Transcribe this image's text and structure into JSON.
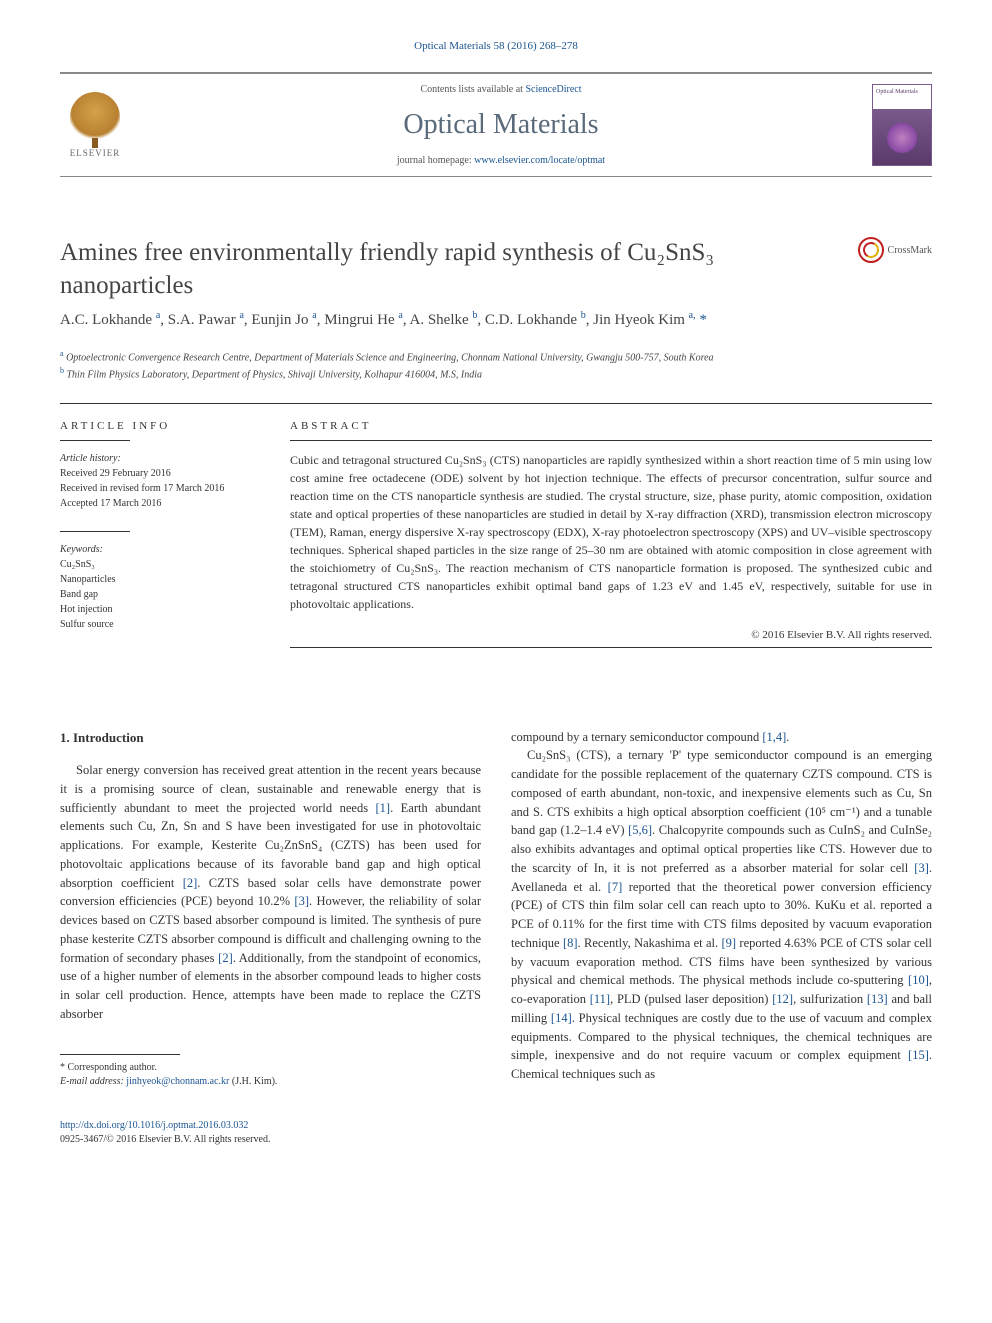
{
  "citation": "Optical Materials 58 (2016) 268–278",
  "header": {
    "contents_text": "Contents lists available at ",
    "sciencedirect": "ScienceDirect",
    "journal_name": "Optical Materials",
    "homepage_label": "journal homepage: ",
    "homepage_url": "www.elsevier.com/locate/optmat",
    "publisher_logo_text": "ELSEVIER"
  },
  "article": {
    "title": "Amines free environmentally friendly rapid synthesis of Cu₂SnS₃ nanoparticles",
    "crossmark_label": "CrossMark",
    "authors_html": "A.C. Lokhande <sup>a</sup>, S.A. Pawar <sup>a</sup>, Eunjin Jo <sup>a</sup>, Mingrui He <sup>a</sup>, A. Shelke <sup>b</sup>, C.D. Lokhande <sup>b</sup>, Jin Hyeok Kim <sup>a,</sup> <span class=\"star\">*</span>",
    "affiliations": [
      {
        "sup": "a",
        "text": "Optoelectronic Convergence Research Centre, Department of Materials Science and Engineering, Chonnam National University, Gwangju 500-757, South Korea"
      },
      {
        "sup": "b",
        "text": "Thin Film Physics Laboratory, Department of Physics, Shivaji University, Kolhapur 416004, M.S, India"
      }
    ]
  },
  "info": {
    "heading": "ARTICLE INFO",
    "history_label": "Article history:",
    "history": [
      "Received 29 February 2016",
      "Received in revised form 17 March 2016",
      "Accepted 17 March 2016"
    ],
    "keywords_label": "Keywords:",
    "keywords": [
      "Cu₂SnS₃",
      "Nanoparticles",
      "Band gap",
      "Hot injection",
      "Sulfur source"
    ]
  },
  "abstract": {
    "heading": "ABSTRACT",
    "text": "Cubic and tetragonal structured Cu₂SnS₃ (CTS) nanoparticles are rapidly synthesized within a short reaction time of 5 min using low cost amine free octadecene (ODE) solvent by hot injection technique. The effects of precursor concentration, sulfur source and reaction time on the CTS nanoparticle synthesis are studied. The crystal structure, size, phase purity, atomic composition, oxidation state and optical properties of these nanoparticles are studied in detail by X-ray diffraction (XRD), transmission electron microscopy (TEM), Raman, energy dispersive X-ray spectroscopy (EDX), X-ray photoelectron spectroscopy (XPS) and UV–visible spectroscopy techniques. Spherical shaped particles in the size range of 25–30 nm are obtained with atomic composition in close agreement with the stoichiometry of Cu₂SnS₃. The reaction mechanism of CTS nanoparticle formation is proposed. The synthesized cubic and tetragonal structured CTS nanoparticles exhibit optimal band gaps of 1.23 eV and 1.45 eV, respectively, suitable for use in photovoltaic applications.",
    "copyright": "© 2016 Elsevier B.V. All rights reserved."
  },
  "body": {
    "section_heading": "1. Introduction",
    "col1_p1": "Solar energy conversion has received great attention in the recent years because it is a promising source of clean, sustainable and renewable energy that is sufficiently abundant to meet the projected world needs [1]. Earth abundant elements such Cu, Zn, Sn and S have been investigated for use in photovoltaic applications. For example, Kesterite Cu₂ZnSnS₄ (CZTS) has been used for photovoltaic applications because of its favorable band gap and high optical absorption coefficient [2]. CZTS based solar cells have demonstrate power conversion efficiencies (PCE) beyond 10.2% [3]. However, the reliability of solar devices based on CZTS based absorber compound is limited. The synthesis of pure phase kesterite CZTS absorber compound is difficult and challenging owning to the formation of secondary phases [2]. Additionally, from the standpoint of economics, use of a higher number of elements in the absorber compound leads to higher costs in solar cell production. Hence, attempts have been made to replace the CZTS absorber",
    "col2_p1": "compound by a ternary semiconductor compound [1,4].",
    "col2_p2": "Cu₂SnS₃ (CTS), a ternary 'P' type semiconductor compound is an emerging candidate for the possible replacement of the quaternary CZTS compound. CTS is composed of earth abundant, non-toxic, and inexpensive elements such as Cu, Sn and S. CTS exhibits a high optical absorption coefficient (10⁵ cm⁻¹) and a tunable band gap (1.2–1.4 eV) [5,6]. Chalcopyrite compounds such as CuInS₂ and CuInSe₂ also exhibits advantages and optimal optical properties like CTS. However due to the scarcity of In, it is not preferred as a absorber material for solar cell [3]. Avellaneda et al. [7] reported that the theoretical power conversion efficiency (PCE) of CTS thin film solar cell can reach upto to 30%. KuKu et al. reported a PCE of 0.11% for the first time with CTS films deposited by vacuum evaporation technique [8]. Recently, Nakashima et al. [9] reported 4.63% PCE of CTS solar cell by vacuum evaporation method. CTS films have been synthesized by various physical and chemical methods. The physical methods include co-sputtering [10], co-evaporation [11], PLD (pulsed laser deposition) [12], sulfurization [13] and ball milling [14]. Physical techniques are costly due to the use of vacuum and complex equipments. Compared to the physical techniques, the chemical techniques are simple, inexpensive and do not require vacuum or complex equipment [15]. Chemical techniques such as"
  },
  "footer": {
    "corresponding_label": "* Corresponding author.",
    "email_label": "E-mail address: ",
    "email": "jinhyeok@chonnam.ac.kr",
    "email_name": "(J.H. Kim).",
    "doi_label": "http://dx.doi.org/10.1016/j.optmat.2016.03.032",
    "issn_line": "0925-3467/© 2016 Elsevier B.V. All rights reserved."
  },
  "colors": {
    "link": "#1a5490",
    "text": "#333333",
    "journal_title": "#5a6a7a"
  },
  "citation_refs": {
    "col1": [
      "[1]",
      "[2]",
      "[3]",
      "[2]"
    ],
    "col2": [
      "[1,4]",
      "[5,6]",
      "[3]",
      "[7]",
      "[8]",
      "[9]",
      "[10]",
      "[11]",
      "[12]",
      "[13]",
      "[14]",
      "[15]"
    ]
  }
}
